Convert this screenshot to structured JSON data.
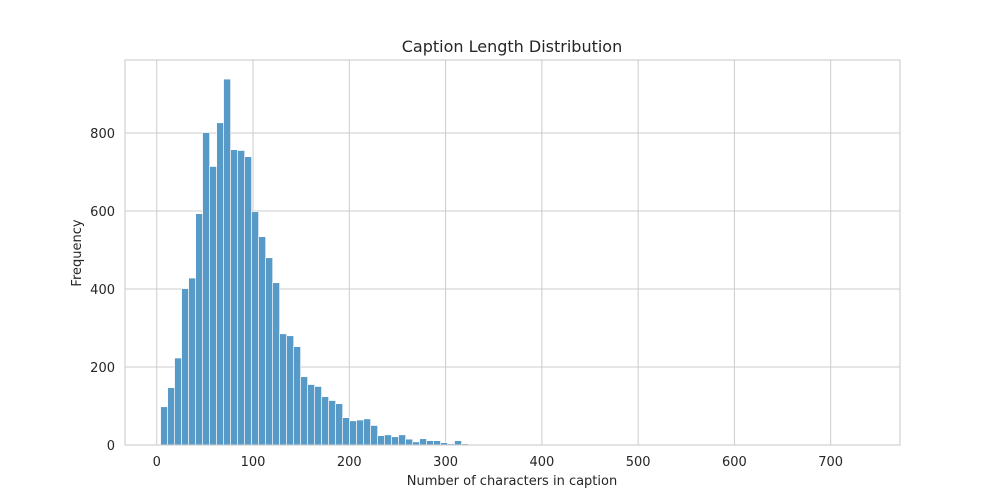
{
  "chart_data": {
    "type": "bar",
    "subtype": "histogram",
    "title": "Caption Length Distribution",
    "xlabel": "Number of characters in caption",
    "ylabel": "Frequency",
    "xlim": [
      -33,
      772
    ],
    "ylim": [
      0,
      987
    ],
    "xticks": [
      0,
      100,
      200,
      300,
      400,
      500,
      600,
      700
    ],
    "yticks": [
      0,
      200,
      400,
      600,
      800
    ],
    "grid": true,
    "legend": null,
    "bar_color": "#5799c7",
    "bin_start": 4,
    "bin_width": 7.27,
    "bins": [
      {
        "x": 4,
        "count": 98
      },
      {
        "x": 11.3,
        "count": 147
      },
      {
        "x": 18.5,
        "count": 223
      },
      {
        "x": 25.8,
        "count": 401
      },
      {
        "x": 33.1,
        "count": 428
      },
      {
        "x": 40.4,
        "count": 593
      },
      {
        "x": 47.6,
        "count": 801
      },
      {
        "x": 54.9,
        "count": 714
      },
      {
        "x": 62.2,
        "count": 826
      },
      {
        "x": 69.4,
        "count": 938
      },
      {
        "x": 76.7,
        "count": 757
      },
      {
        "x": 84.0,
        "count": 755
      },
      {
        "x": 91.2,
        "count": 739
      },
      {
        "x": 98.5,
        "count": 598
      },
      {
        "x": 105.8,
        "count": 534
      },
      {
        "x": 113.1,
        "count": 480
      },
      {
        "x": 120.3,
        "count": 416
      },
      {
        "x": 127.6,
        "count": 285
      },
      {
        "x": 134.9,
        "count": 280
      },
      {
        "x": 142.1,
        "count": 252
      },
      {
        "x": 149.4,
        "count": 175
      },
      {
        "x": 156.7,
        "count": 155
      },
      {
        "x": 163.9,
        "count": 150
      },
      {
        "x": 171.2,
        "count": 124
      },
      {
        "x": 178.5,
        "count": 114
      },
      {
        "x": 185.8,
        "count": 106
      },
      {
        "x": 193.0,
        "count": 70
      },
      {
        "x": 200.3,
        "count": 62
      },
      {
        "x": 207.6,
        "count": 64
      },
      {
        "x": 214.8,
        "count": 67
      },
      {
        "x": 222.1,
        "count": 50
      },
      {
        "x": 229.4,
        "count": 24
      },
      {
        "x": 236.6,
        "count": 26
      },
      {
        "x": 243.9,
        "count": 21
      },
      {
        "x": 251.2,
        "count": 26
      },
      {
        "x": 258.5,
        "count": 15
      },
      {
        "x": 265.7,
        "count": 8
      },
      {
        "x": 273.0,
        "count": 16
      },
      {
        "x": 280.3,
        "count": 11
      },
      {
        "x": 287.5,
        "count": 11
      },
      {
        "x": 294.8,
        "count": 6
      },
      {
        "x": 302.1,
        "count": 3
      },
      {
        "x": 309.3,
        "count": 11
      },
      {
        "x": 316.6,
        "count": 3
      },
      {
        "x": 323.9,
        "count": 0
      },
      {
        "x": 331.2,
        "count": 0
      },
      {
        "x": 338.4,
        "count": 0
      },
      {
        "x": 345.7,
        "count": 2
      },
      {
        "x": 353.0,
        "count": 2
      },
      {
        "x": 360.2,
        "count": 2
      },
      {
        "x": 367.5,
        "count": 2
      },
      {
        "x": 414.0,
        "count": 1
      },
      {
        "x": 509.0,
        "count": 1
      },
      {
        "x": 618.0,
        "count": 1
      }
    ]
  }
}
